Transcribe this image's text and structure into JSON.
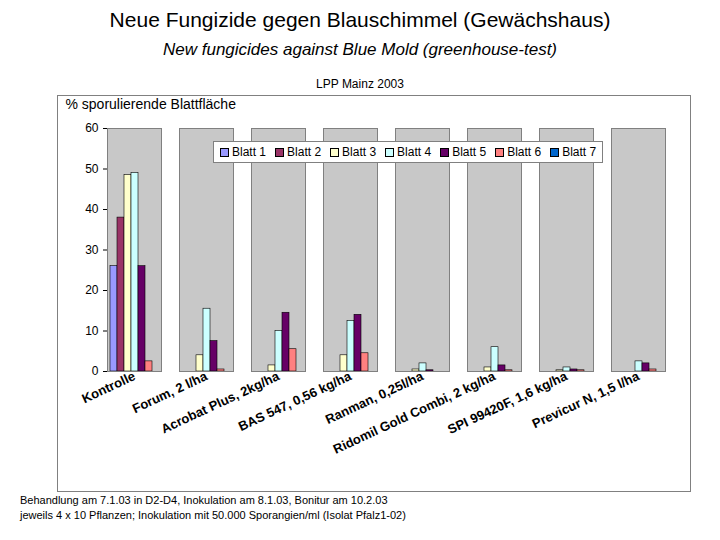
{
  "chart_data": {
    "type": "bar",
    "title": "Neue Fungizide gegen Blauschimmel (Gewächshaus)",
    "subtitle": "New fungicides against Blue Mold (greenhouse-test)",
    "annotations": [
      "LPP Mainz 2003",
      "Behandlung am 7.1.03 in D2-D4, Inokulation am 8.1.03, Bonitur am 10.2.03",
      "jeweils 4 x 10 Pflanzen; Inokulation mit 50.000 Sporangien/ml (Isolat Pfalz1-02)"
    ],
    "ylabel": "% sporulierende Blattfläche",
    "categories": [
      "Kontrolle",
      "Forum, 2 l/ha",
      "Acrobat Plus, 2kg/ha",
      "BAS 547, 0,56 kg/ha",
      "Ranman, 0,25l/ha",
      "Ridomil Gold Combi, 2 kg/ha",
      "SPI 99420F, 1,6 kg/ha",
      "Previcur N, 1,5 l/ha"
    ],
    "series": [
      {
        "name": "Blatt 1",
        "color": "#9999ff",
        "values": [
          26,
          0,
          0,
          0,
          0,
          0,
          0,
          0
        ]
      },
      {
        "name": "Blatt 2",
        "color": "#993366",
        "values": [
          38,
          0,
          0,
          0,
          0,
          0,
          0,
          0
        ]
      },
      {
        "name": "Blatt 3",
        "color": "#ffffcc",
        "values": [
          48.5,
          4,
          1.5,
          4,
          0.5,
          1,
          0.3,
          0
        ]
      },
      {
        "name": "Blatt 4",
        "color": "#ccffff",
        "values": [
          49,
          15.5,
          10,
          12.5,
          2,
          6,
          1,
          2.5
        ]
      },
      {
        "name": "Blatt 5",
        "color": "#660066",
        "values": [
          26,
          7.5,
          14.5,
          14,
          0.3,
          1.5,
          0.5,
          2
        ]
      },
      {
        "name": "Blatt 6",
        "color": "#ff8080",
        "values": [
          2.5,
          0.5,
          5.5,
          4.5,
          0,
          0.3,
          0.3,
          0.5
        ]
      },
      {
        "name": "Blatt 7",
        "color": "#0066cc",
        "values": [
          0,
          0,
          0,
          0,
          0,
          0,
          0,
          0
        ]
      }
    ],
    "ylim": [
      0,
      60
    ],
    "yticks": [
      0,
      10,
      20,
      30,
      40,
      50,
      60
    ],
    "grid": false,
    "legend": "top"
  }
}
